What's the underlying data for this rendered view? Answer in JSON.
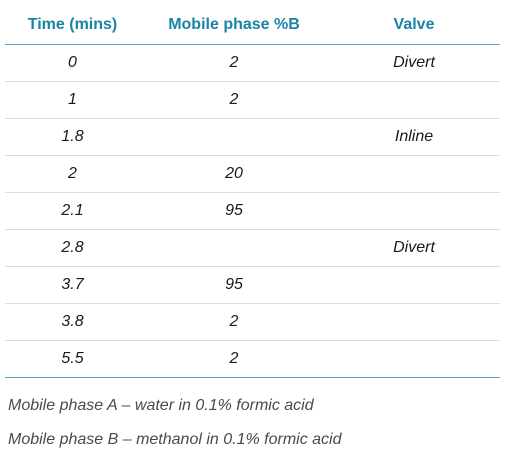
{
  "table": {
    "headers": [
      "Time (mins)",
      "Mobile phase %B",
      "Valve"
    ],
    "rows": [
      {
        "time": "0",
        "percent_b": "2",
        "valve": "Divert"
      },
      {
        "time": "1",
        "percent_b": "2",
        "valve": ""
      },
      {
        "time": "1.8",
        "percent_b": "",
        "valve": "Inline"
      },
      {
        "time": "2",
        "percent_b": "20",
        "valve": ""
      },
      {
        "time": "2.1",
        "percent_b": "95",
        "valve": ""
      },
      {
        "time": "2.8",
        "percent_b": "",
        "valve": "Divert"
      },
      {
        "time": "3.7",
        "percent_b": "95",
        "valve": ""
      },
      {
        "time": "3.8",
        "percent_b": "2",
        "valve": ""
      },
      {
        "time": "5.5",
        "percent_b": "2",
        "valve": ""
      }
    ]
  },
  "notes": [
    "Mobile phase A – water in 0.1% formic acid",
    "Mobile phase B – methanol in 0.1% formic acid"
  ],
  "colors": {
    "header_text": "#1a84a6",
    "rule": "#5aa6be",
    "row_divider": "#d7dde0",
    "note_text": "#4a4a4a"
  }
}
